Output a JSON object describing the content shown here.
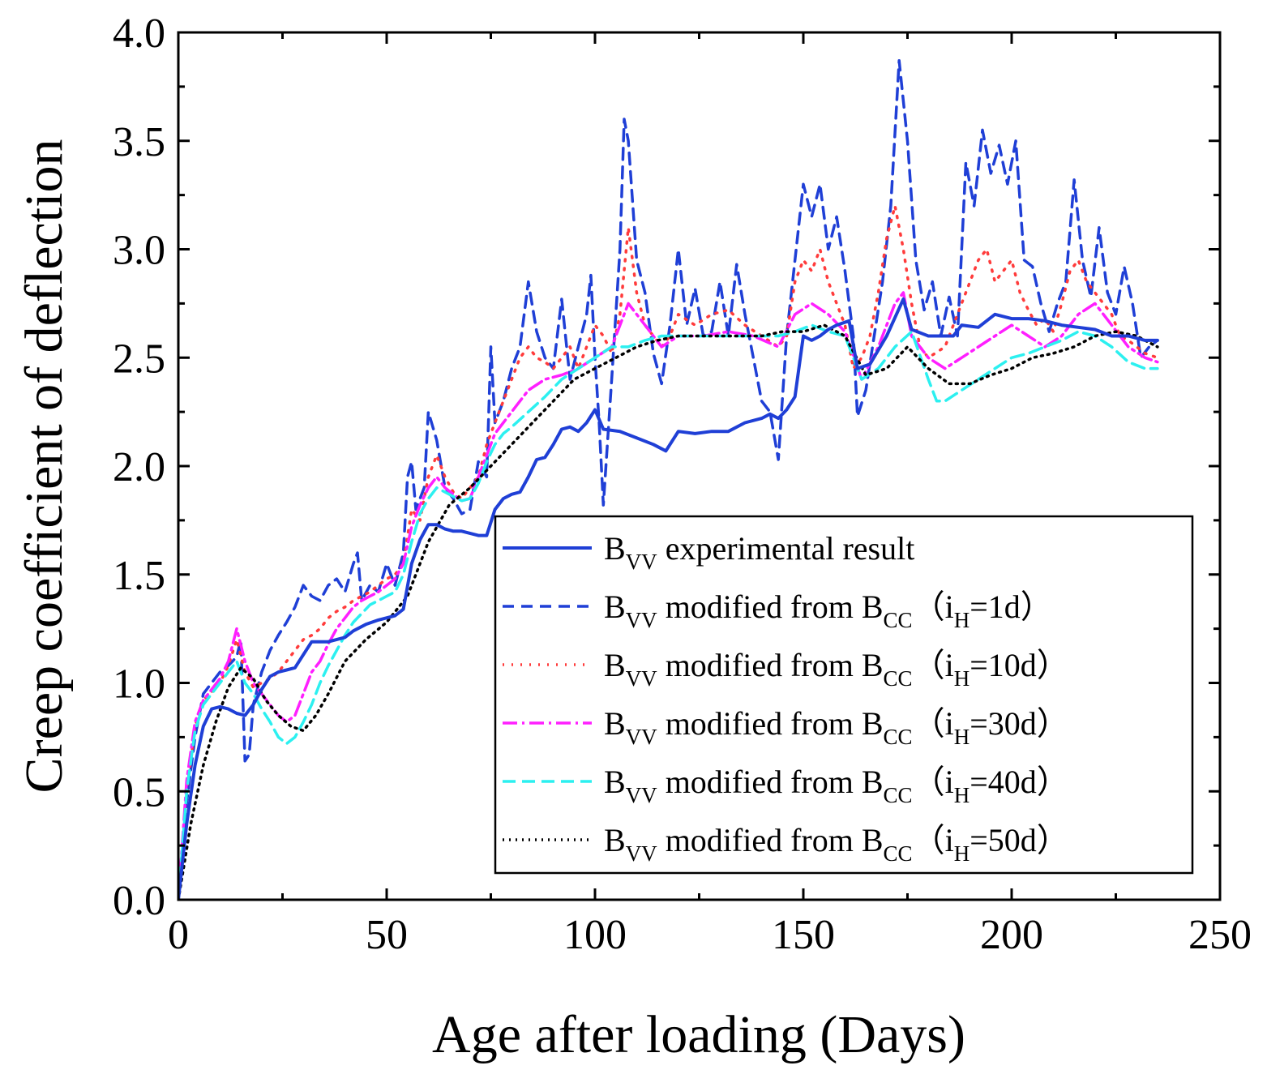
{
  "chart_data": {
    "type": "line",
    "title": "",
    "xlabel": "Age after loading (Days)",
    "ylabel": "Creep coefficient of deflection",
    "xlim": [
      0,
      250
    ],
    "ylim": [
      0,
      4.0
    ],
    "xticks": [
      0,
      50,
      100,
      150,
      200,
      250
    ],
    "xtick_labels": [
      "0",
      "50",
      "100",
      "150",
      "200",
      "250"
    ],
    "yticks": [
      0,
      0.5,
      1.0,
      1.5,
      2.0,
      2.5,
      3.0,
      3.5,
      4.0
    ],
    "ytick_labels": [
      "0.0",
      "0.5",
      "1.0",
      "1.5",
      "2.0",
      "2.5",
      "3.0",
      "3.5",
      "4.0"
    ],
    "grid": false,
    "legend_position": "lower-right",
    "series": [
      {
        "name": "B_VV experimental result",
        "legend": {
          "b": "B",
          "vv": "VV",
          "text": " experimental result",
          "from": "",
          "cc": "",
          "ih_open": "",
          "ih_h": "",
          "ih_rest": ""
        },
        "color": "#1f3fd6",
        "dash": "",
        "width": 4,
        "x": [
          0,
          2,
          4,
          6,
          8,
          10,
          12,
          14,
          16,
          18,
          20,
          22,
          24,
          26,
          28,
          30,
          32,
          36,
          40,
          42,
          45,
          48,
          52,
          54,
          56,
          58,
          60,
          62,
          64,
          66,
          68,
          70,
          72,
          74,
          76,
          78,
          80,
          82,
          84,
          86,
          88,
          90,
          92,
          94,
          96,
          98,
          100,
          102,
          106,
          110,
          114,
          117,
          120,
          124,
          128,
          132,
          136,
          140,
          142,
          144,
          146,
          148,
          150,
          152,
          154,
          156,
          158,
          161,
          163,
          166,
          170,
          174,
          176,
          180,
          186,
          188,
          192,
          196,
          200,
          204,
          208,
          212,
          216,
          220,
          224,
          228,
          232,
          235
        ],
        "y": [
          0.0,
          0.35,
          0.62,
          0.8,
          0.88,
          0.89,
          0.88,
          0.86,
          0.85,
          0.9,
          0.97,
          1.03,
          1.05,
          1.06,
          1.07,
          1.13,
          1.19,
          1.19,
          1.21,
          1.24,
          1.27,
          1.29,
          1.31,
          1.34,
          1.55,
          1.66,
          1.73,
          1.73,
          1.71,
          1.7,
          1.7,
          1.69,
          1.68,
          1.68,
          1.8,
          1.85,
          1.87,
          1.88,
          1.95,
          2.03,
          2.04,
          2.1,
          2.17,
          2.18,
          2.16,
          2.2,
          2.26,
          2.17,
          2.16,
          2.13,
          2.1,
          2.07,
          2.16,
          2.15,
          2.16,
          2.16,
          2.2,
          2.22,
          2.24,
          2.22,
          2.26,
          2.32,
          2.6,
          2.58,
          2.6,
          2.63,
          2.65,
          2.67,
          2.45,
          2.47,
          2.6,
          2.77,
          2.63,
          2.6,
          2.6,
          2.65,
          2.64,
          2.7,
          2.68,
          2.68,
          2.67,
          2.65,
          2.64,
          2.63,
          2.6,
          2.6,
          2.58,
          2.58
        ]
      },
      {
        "name": "B_VV modified from B_CC (i_H=1d)",
        "legend": {
          "b": "B",
          "vv": "VV",
          "text": " modified from ",
          "from": "B",
          "cc": "CC",
          "ih_open": "（i",
          "ih_h": "H",
          "ih_rest": "=1d）"
        },
        "color": "#1f3fd6",
        "dash": "14 9",
        "width": 3.5,
        "x": [
          0,
          2,
          4,
          6,
          8,
          10,
          12,
          14,
          15,
          16,
          17,
          18,
          20,
          22,
          24,
          26,
          28,
          30,
          32,
          34,
          36,
          38,
          40,
          42,
          43,
          44,
          46,
          48,
          50,
          52,
          54,
          55,
          56,
          57,
          58,
          59,
          60,
          62,
          64,
          66,
          68,
          70,
          72,
          74,
          75,
          76,
          78,
          80,
          82,
          84,
          86,
          88,
          90,
          92,
          94,
          96,
          98,
          99,
          100,
          101,
          102,
          104,
          106,
          107,
          108,
          110,
          112,
          114,
          116,
          118,
          120,
          122,
          124,
          126,
          128,
          130,
          132,
          134,
          136,
          138,
          140,
          142,
          144,
          146,
          148,
          150,
          152,
          154,
          156,
          158,
          160,
          162,
          163,
          165,
          167,
          169,
          171,
          173,
          175,
          177,
          179,
          181,
          183,
          185,
          187,
          189,
          191,
          193,
          195,
          197,
          199,
          201,
          203,
          205,
          207,
          209,
          211,
          213,
          215,
          217,
          219,
          221,
          223,
          225,
          227,
          229,
          231,
          233,
          235
        ],
        "y": [
          0.0,
          0.45,
          0.75,
          0.95,
          1.0,
          1.05,
          1.08,
          1.12,
          1.2,
          0.64,
          0.67,
          0.9,
          1.05,
          1.15,
          1.22,
          1.28,
          1.35,
          1.45,
          1.4,
          1.38,
          1.45,
          1.48,
          1.42,
          1.55,
          1.6,
          1.38,
          1.45,
          1.42,
          1.55,
          1.45,
          1.6,
          1.95,
          2.02,
          1.8,
          1.85,
          1.9,
          2.25,
          2.12,
          1.9,
          1.85,
          1.78,
          1.8,
          2.02,
          1.95,
          2.55,
          2.2,
          2.3,
          2.45,
          2.55,
          2.85,
          2.62,
          2.5,
          2.45,
          2.77,
          2.4,
          2.55,
          2.7,
          2.88,
          2.5,
          2.2,
          1.82,
          2.4,
          3.0,
          3.6,
          3.5,
          2.95,
          2.8,
          2.52,
          2.38,
          2.65,
          3.0,
          2.65,
          2.82,
          2.6,
          2.62,
          2.85,
          2.6,
          2.93,
          2.7,
          2.5,
          2.3,
          2.25,
          2.03,
          2.6,
          2.95,
          3.3,
          3.15,
          3.3,
          3.0,
          3.15,
          2.9,
          2.6,
          2.23,
          2.35,
          2.6,
          2.85,
          3.2,
          3.87,
          3.5,
          2.95,
          2.72,
          2.85,
          2.6,
          2.78,
          2.6,
          3.4,
          3.2,
          3.55,
          3.35,
          3.48,
          3.3,
          3.5,
          2.95,
          2.92,
          2.75,
          2.62,
          2.75,
          2.85,
          3.32,
          2.95,
          2.78,
          3.1,
          2.8,
          2.7,
          2.92,
          2.75,
          2.5,
          2.55,
          2.58
        ]
      },
      {
        "name": "B_VV modified from B_CC (i_H=10d)",
        "legend": {
          "b": "B",
          "vv": "VV",
          "text": " modified from ",
          "from": "B",
          "cc": "CC",
          "ih_open": "（i",
          "ih_h": "H",
          "ih_rest": "=10d）"
        },
        "color": "#ff3b3b",
        "dash": "2 9",
        "width": 3.5,
        "x": [
          0,
          2,
          4,
          6,
          8,
          10,
          12,
          14,
          16,
          18,
          20,
          22,
          24,
          26,
          28,
          30,
          32,
          34,
          36,
          38,
          40,
          42,
          44,
          46,
          48,
          50,
          52,
          54,
          56,
          58,
          60,
          62,
          64,
          66,
          68,
          70,
          72,
          74,
          76,
          78,
          80,
          82,
          84,
          86,
          88,
          90,
          92,
          94,
          96,
          98,
          100,
          102,
          104,
          106,
          108,
          110,
          112,
          114,
          116,
          118,
          120,
          124,
          128,
          132,
          136,
          140,
          144,
          146,
          148,
          150,
          152,
          154,
          156,
          158,
          160,
          162,
          164,
          166,
          168,
          170,
          172,
          174,
          176,
          178,
          180,
          184,
          188,
          190,
          192,
          194,
          196,
          198,
          200,
          202,
          204,
          206,
          208,
          210,
          212,
          214,
          216,
          218,
          220,
          222,
          224,
          226,
          228,
          230,
          232,
          235
        ],
        "y": [
          0.0,
          0.5,
          0.8,
          0.92,
          0.96,
          1.0,
          1.08,
          1.2,
          1.05,
          0.98,
          1.0,
          1.02,
          1.05,
          1.1,
          1.15,
          1.2,
          1.22,
          1.25,
          1.3,
          1.33,
          1.35,
          1.38,
          1.4,
          1.42,
          1.45,
          1.48,
          1.5,
          1.55,
          1.8,
          1.75,
          1.95,
          2.05,
          1.95,
          1.88,
          1.85,
          1.9,
          1.95,
          2.1,
          2.2,
          2.3,
          2.4,
          2.5,
          2.55,
          2.5,
          2.48,
          2.45,
          2.5,
          2.55,
          2.45,
          2.55,
          2.65,
          2.6,
          2.52,
          2.7,
          3.1,
          2.8,
          2.65,
          2.6,
          2.55,
          2.6,
          2.7,
          2.65,
          2.7,
          2.72,
          2.65,
          2.6,
          2.55,
          2.6,
          2.85,
          2.95,
          2.9,
          3.0,
          2.85,
          2.75,
          2.65,
          2.45,
          2.5,
          2.6,
          2.8,
          3.05,
          3.2,
          3.0,
          2.75,
          2.55,
          2.5,
          2.55,
          2.75,
          2.85,
          2.95,
          3.0,
          2.85,
          2.9,
          2.95,
          2.8,
          2.72,
          2.65,
          2.68,
          2.62,
          2.75,
          2.9,
          2.95,
          2.85,
          2.8,
          2.75,
          2.7,
          2.6,
          2.58,
          2.55,
          2.52,
          2.5
        ]
      },
      {
        "name": "B_VV modified from B_CC (i_H=30d)",
        "legend": {
          "b": "B",
          "vv": "VV",
          "text": " modified from ",
          "from": "B",
          "cc": "CC",
          "ih_open": "（i",
          "ih_h": "H",
          "ih_rest": "=30d）"
        },
        "color": "#ff1fff",
        "dash": "18 6 3 6",
        "width": 3.5,
        "x": [
          0,
          2,
          4,
          6,
          8,
          10,
          12,
          14,
          16,
          18,
          20,
          22,
          24,
          26,
          28,
          30,
          32,
          34,
          36,
          38,
          40,
          42,
          44,
          46,
          48,
          50,
          52,
          54,
          56,
          58,
          60,
          62,
          64,
          66,
          68,
          70,
          72,
          74,
          76,
          78,
          80,
          84,
          88,
          92,
          96,
          100,
          104,
          108,
          112,
          116,
          120,
          126,
          132,
          138,
          144,
          148,
          152,
          156,
          160,
          164,
          168,
          172,
          174,
          176,
          180,
          184,
          188,
          192,
          196,
          200,
          204,
          208,
          212,
          216,
          220,
          224,
          228,
          232,
          235
        ],
        "y": [
          0.0,
          0.55,
          0.82,
          0.92,
          0.97,
          1.02,
          1.1,
          1.25,
          1.1,
          1.0,
          0.95,
          0.9,
          0.85,
          0.82,
          0.85,
          0.95,
          1.05,
          1.1,
          1.18,
          1.25,
          1.3,
          1.35,
          1.38,
          1.4,
          1.42,
          1.45,
          1.48,
          1.55,
          1.72,
          1.82,
          1.9,
          1.95,
          1.9,
          1.87,
          1.84,
          1.85,
          1.95,
          2.05,
          2.15,
          2.2,
          2.25,
          2.35,
          2.4,
          2.42,
          2.45,
          2.5,
          2.55,
          2.75,
          2.65,
          2.55,
          2.6,
          2.6,
          2.62,
          2.6,
          2.55,
          2.7,
          2.75,
          2.7,
          2.62,
          2.4,
          2.55,
          2.75,
          2.8,
          2.6,
          2.5,
          2.45,
          2.5,
          2.55,
          2.6,
          2.65,
          2.6,
          2.55,
          2.6,
          2.7,
          2.75,
          2.65,
          2.55,
          2.5,
          2.48
        ]
      },
      {
        "name": "B_VV modified from B_CC (i_H=40d)",
        "legend": {
          "b": "B",
          "vv": "VV",
          "text": " modified from ",
          "from": "B",
          "cc": "CC",
          "ih_open": "（i",
          "ih_h": "H",
          "ih_rest": "=40d）"
        },
        "color": "#2cf0f0",
        "dash": "16 8",
        "width": 3.5,
        "x": [
          0,
          2,
          4,
          6,
          8,
          10,
          12,
          14,
          16,
          18,
          20,
          22,
          24,
          26,
          28,
          30,
          32,
          34,
          36,
          38,
          40,
          42,
          44,
          46,
          48,
          50,
          52,
          54,
          56,
          58,
          60,
          62,
          64,
          66,
          68,
          70,
          72,
          74,
          76,
          78,
          80,
          84,
          88,
          92,
          96,
          100,
          104,
          108,
          112,
          116,
          120,
          126,
          132,
          138,
          144,
          148,
          152,
          156,
          160,
          164,
          168,
          172,
          176,
          180,
          182,
          184,
          188,
          192,
          196,
          200,
          204,
          208,
          212,
          216,
          220,
          224,
          228,
          232,
          235
        ],
        "y": [
          0.0,
          0.5,
          0.78,
          0.9,
          0.95,
          1.0,
          1.05,
          1.1,
          1.0,
          0.95,
          0.88,
          0.82,
          0.75,
          0.72,
          0.75,
          0.82,
          0.9,
          1.0,
          1.08,
          1.15,
          1.22,
          1.28,
          1.32,
          1.36,
          1.38,
          1.4,
          1.42,
          1.5,
          1.65,
          1.78,
          1.85,
          1.9,
          1.88,
          1.86,
          1.84,
          1.85,
          1.92,
          2.02,
          2.1,
          2.15,
          2.18,
          2.25,
          2.32,
          2.4,
          2.45,
          2.5,
          2.55,
          2.55,
          2.58,
          2.6,
          2.6,
          2.6,
          2.6,
          2.6,
          2.6,
          2.62,
          2.65,
          2.62,
          2.6,
          2.4,
          2.45,
          2.55,
          2.62,
          2.4,
          2.3,
          2.3,
          2.35,
          2.4,
          2.45,
          2.5,
          2.52,
          2.55,
          2.58,
          2.62,
          2.6,
          2.55,
          2.48,
          2.45,
          2.45
        ]
      },
      {
        "name": "B_VV modified from B_CC (i_H=50d)",
        "legend": {
          "b": "B",
          "vv": "VV",
          "text": " modified from ",
          "from": "B",
          "cc": "CC",
          "ih_open": "（i",
          "ih_h": "H",
          "ih_rest": "=50d）"
        },
        "color": "#000000",
        "dash": "2 6",
        "width": 3.5,
        "x": [
          0,
          3,
          6,
          9,
          12,
          15,
          18,
          21,
          24,
          27,
          30,
          33,
          36,
          40,
          45,
          50,
          55,
          60,
          65,
          70,
          75,
          80,
          85,
          90,
          95,
          100,
          105,
          110,
          115,
          120,
          125,
          130,
          135,
          140,
          145,
          150,
          155,
          160,
          165,
          170,
          175,
          180,
          185,
          190,
          195,
          200,
          205,
          210,
          215,
          220,
          225,
          230,
          235
        ],
        "y": [
          0.0,
          0.35,
          0.62,
          0.82,
          0.98,
          1.07,
          1.02,
          0.92,
          0.85,
          0.8,
          0.78,
          0.85,
          0.95,
          1.1,
          1.2,
          1.28,
          1.4,
          1.65,
          1.82,
          1.9,
          2.0,
          2.1,
          2.2,
          2.3,
          2.4,
          2.45,
          2.5,
          2.55,
          2.58,
          2.6,
          2.6,
          2.6,
          2.6,
          2.6,
          2.62,
          2.62,
          2.65,
          2.6,
          2.42,
          2.45,
          2.55,
          2.45,
          2.38,
          2.38,
          2.42,
          2.45,
          2.5,
          2.52,
          2.55,
          2.6,
          2.62,
          2.6,
          2.55
        ]
      }
    ]
  }
}
